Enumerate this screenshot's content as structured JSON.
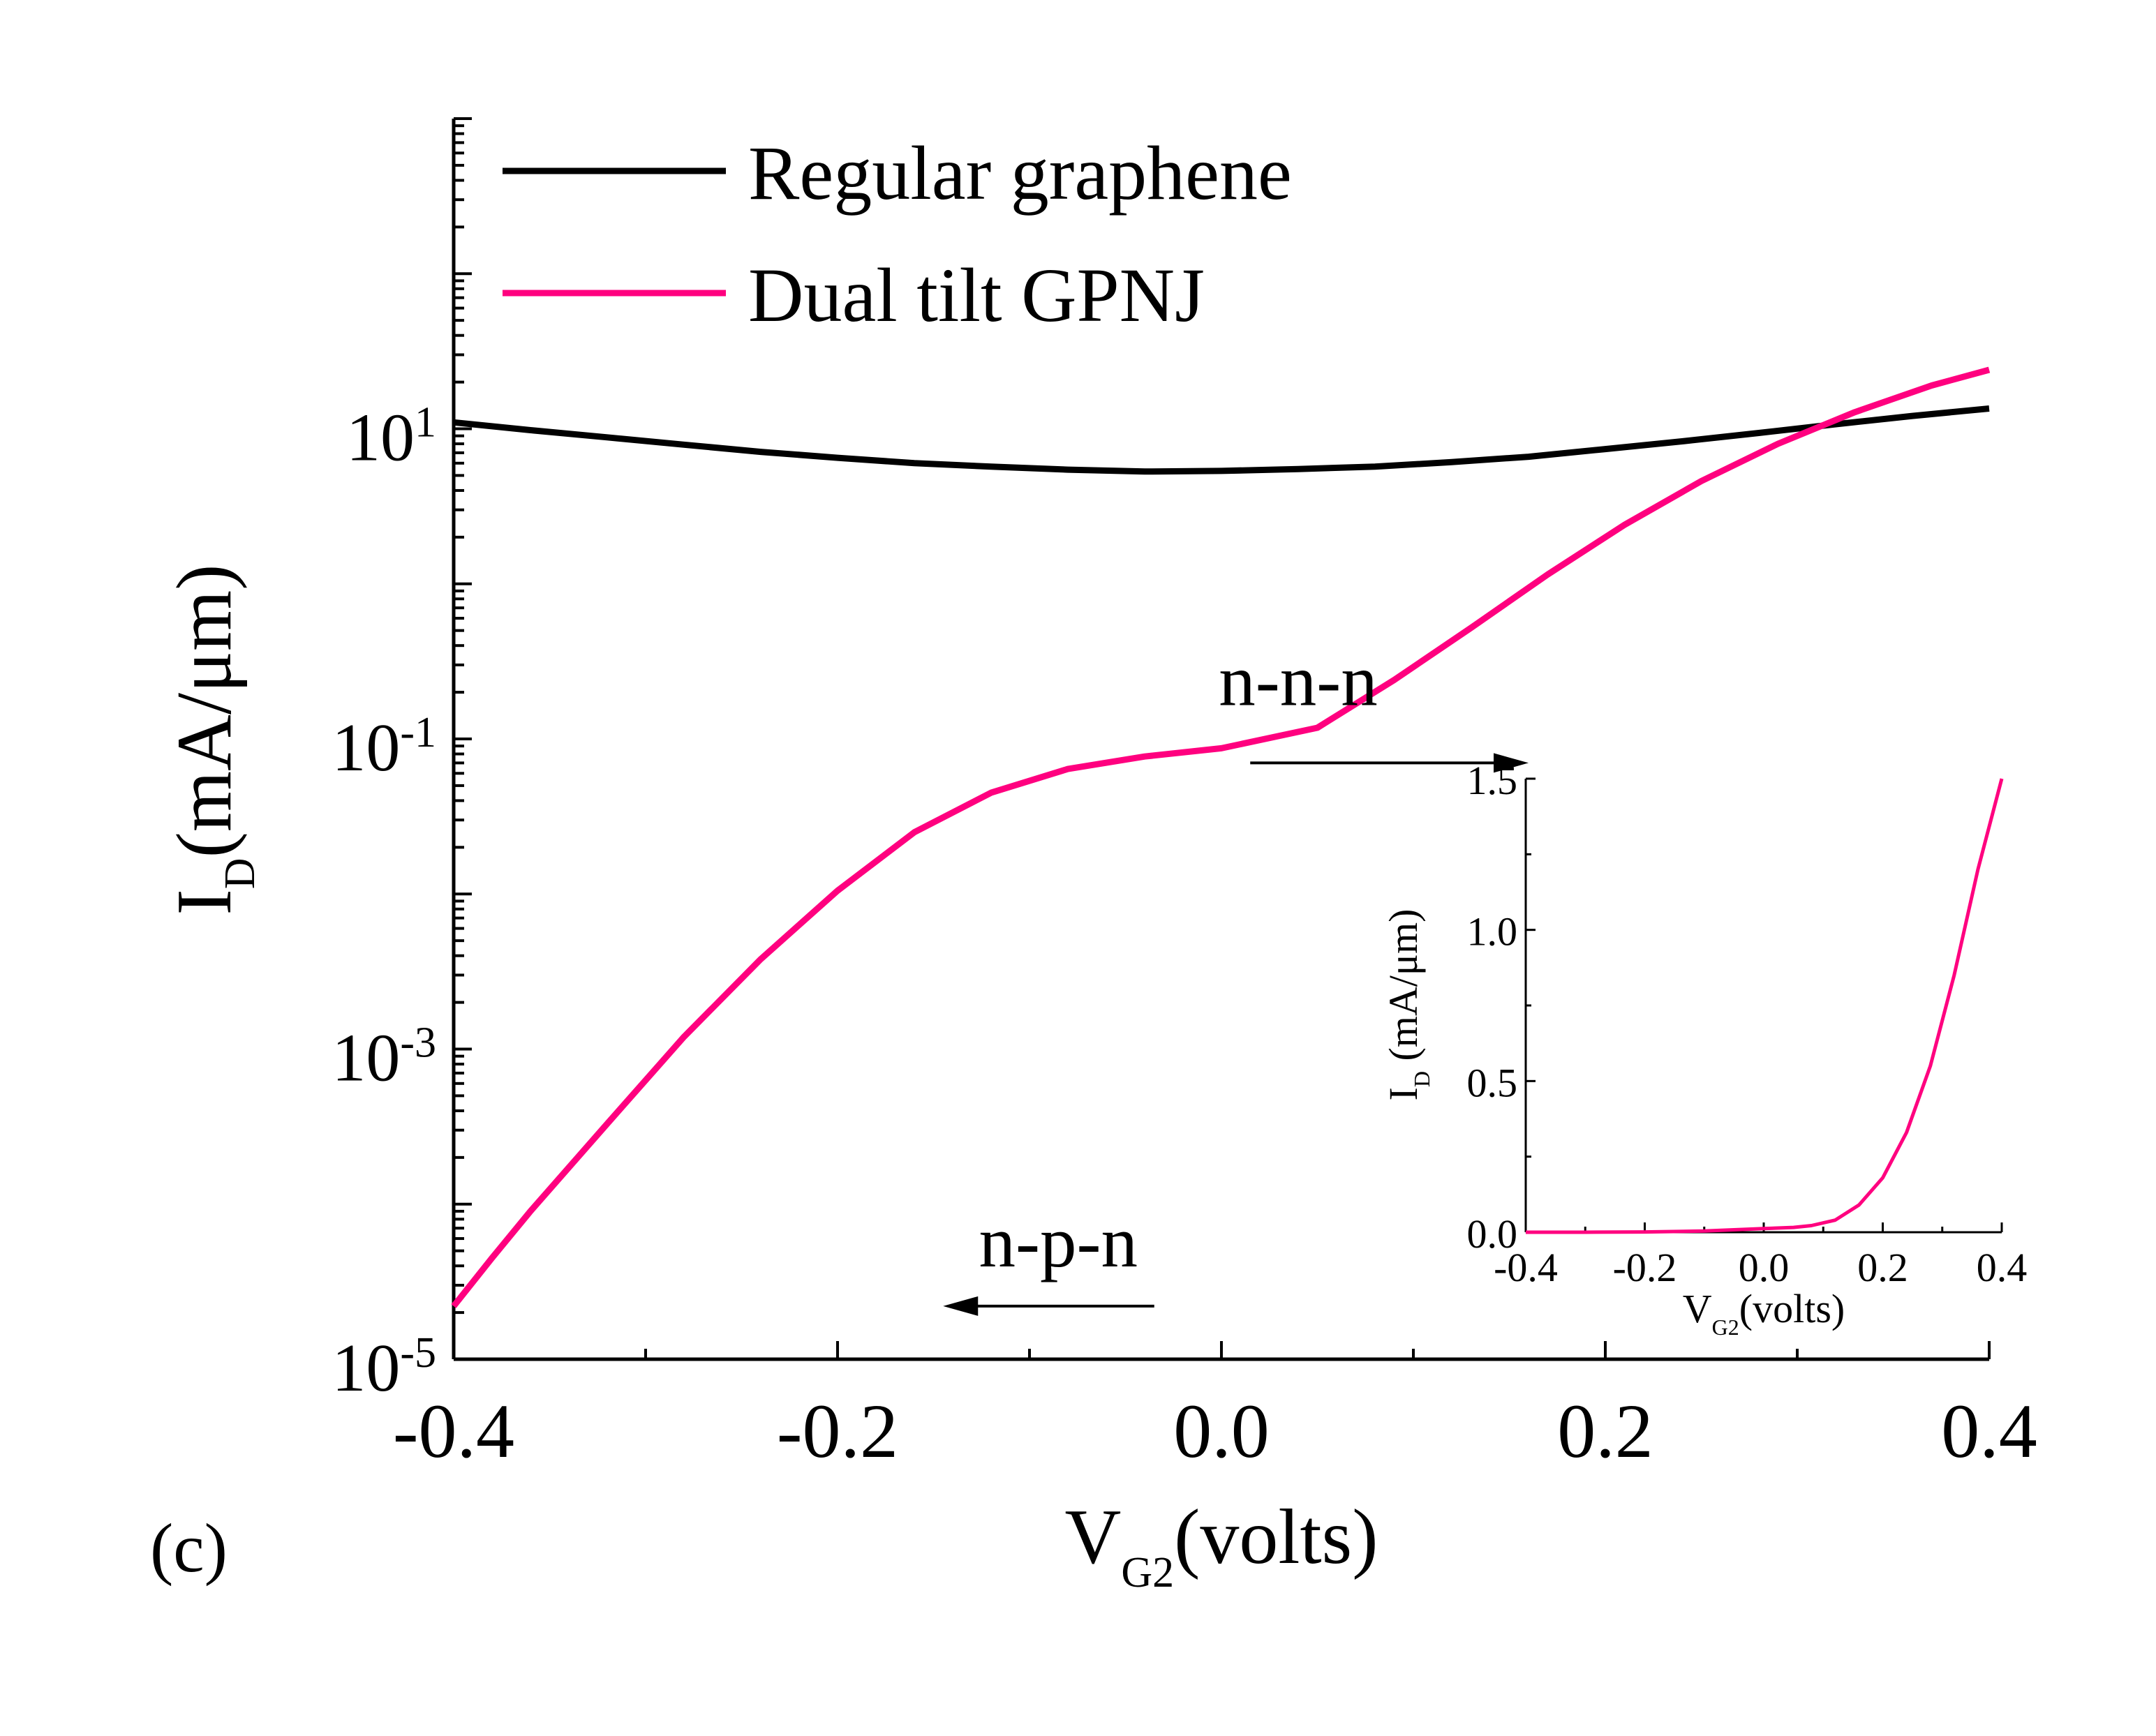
{
  "panel_label": "(c)",
  "colors": {
    "regular": "#000000",
    "gpnj": "#ff007f",
    "axis": "#000000",
    "background": "#ffffff"
  },
  "chart_data": [
    {
      "type": "line",
      "scale": "log-y",
      "title": "",
      "xlabel": {
        "main": "V",
        "sub": "G2",
        "suffix": "(volts)"
      },
      "ylabel": {
        "main": "I",
        "sub": "D",
        "suffix": "(mA/μm)"
      },
      "xlim": [
        -0.4,
        0.4
      ],
      "ylim": [
        1e-05,
        1000
      ],
      "x_ticks": [
        {
          "value": -0.4,
          "label": "-0.4"
        },
        {
          "value": -0.2,
          "label": "-0.2"
        },
        {
          "value": 0.0,
          "label": "0.0"
        },
        {
          "value": 0.2,
          "label": "0.2"
        },
        {
          "value": 0.4,
          "label": "0.4"
        }
      ],
      "y_ticks": [
        {
          "value": 1e-05,
          "base": "10",
          "exp": "-5"
        },
        {
          "value": 0.001,
          "base": "10",
          "exp": "-3"
        },
        {
          "value": 0.1,
          "base": "10",
          "exp": "-1"
        },
        {
          "value": 10,
          "base": "10",
          "exp": "1"
        }
      ],
      "legend": {
        "position": "top-left",
        "entries": [
          {
            "label": "Regular graphene",
            "series": 0
          },
          {
            "label": "Dual tilt GPNJ",
            "series": 1
          }
        ]
      },
      "annotations": [
        {
          "text": "n-n-n",
          "x": 0.04,
          "y": 0.25,
          "arrow_from": 0.015,
          "arrow_to": 0.16,
          "arrow_y": 0.07
        },
        {
          "text": "n-p-n",
          "x": -0.085,
          "y": 6e-05,
          "arrow_from": -0.035,
          "arrow_to": -0.145,
          "arrow_y": 2.2e-05
        }
      ],
      "series": [
        {
          "name": "Regular graphene",
          "color": "#000000",
          "x": [
            -0.4,
            -0.36,
            -0.32,
            -0.28,
            -0.24,
            -0.2,
            -0.16,
            -0.12,
            -0.08,
            -0.04,
            0.0,
            0.04,
            0.08,
            0.12,
            0.16,
            0.2,
            0.24,
            0.28,
            0.32,
            0.36,
            0.4
          ],
          "y": [
            11,
            9.8,
            8.8,
            7.9,
            7.1,
            6.5,
            6.0,
            5.7,
            5.45,
            5.3,
            5.35,
            5.5,
            5.7,
            6.1,
            6.6,
            7.4,
            8.3,
            9.4,
            10.7,
            12.1,
            13.5
          ]
        },
        {
          "name": "Dual tilt GPNJ",
          "color": "#ff007f",
          "x": [
            -0.4,
            -0.38,
            -0.36,
            -0.32,
            -0.28,
            -0.24,
            -0.2,
            -0.16,
            -0.12,
            -0.08,
            -0.04,
            0.0,
            0.05,
            0.09,
            0.13,
            0.17,
            0.21,
            0.25,
            0.29,
            0.33,
            0.37,
            0.4
          ],
          "y": [
            2.2e-05,
            4.5e-05,
            9e-05,
            0.00033,
            0.0012,
            0.0038,
            0.0105,
            0.025,
            0.045,
            0.064,
            0.077,
            0.087,
            0.118,
            0.24,
            0.52,
            1.15,
            2.4,
            4.6,
            8.0,
            12.8,
            19,
            24
          ]
        }
      ]
    },
    {
      "type": "line",
      "scale": "linear",
      "role": "inset",
      "title": "",
      "xlabel": {
        "main": "V",
        "sub": "G2",
        "suffix": "(volts)"
      },
      "ylabel": {
        "main": "I",
        "sub": "D",
        "suffix": " (mA/μm)"
      },
      "xlim": [
        -0.4,
        0.4
      ],
      "ylim": [
        0,
        1.5
      ],
      "x_ticks": [
        {
          "value": -0.4,
          "label": "-0.4"
        },
        {
          "value": -0.2,
          "label": "-0.2"
        },
        {
          "value": 0.0,
          "label": "0.0"
        },
        {
          "value": 0.2,
          "label": "0.2"
        },
        {
          "value": 0.4,
          "label": "0.4"
        }
      ],
      "y_ticks": [
        {
          "value": 0.0,
          "label": "0.0"
        },
        {
          "value": 0.5,
          "label": "0.5"
        },
        {
          "value": 1.0,
          "label": "1.0"
        },
        {
          "value": 1.5,
          "label": "1.5"
        }
      ],
      "series": [
        {
          "name": "Dual tilt GPNJ",
          "color": "#ff007f",
          "x": [
            -0.4,
            -0.3,
            -0.2,
            -0.1,
            -0.05,
            0.0,
            0.05,
            0.08,
            0.12,
            0.16,
            0.2,
            0.24,
            0.28,
            0.32,
            0.36,
            0.4
          ],
          "y": [
            0,
            0,
            0.001,
            0.004,
            0.008,
            0.012,
            0.016,
            0.022,
            0.04,
            0.09,
            0.18,
            0.33,
            0.55,
            0.85,
            1.2,
            1.5
          ]
        }
      ]
    }
  ]
}
